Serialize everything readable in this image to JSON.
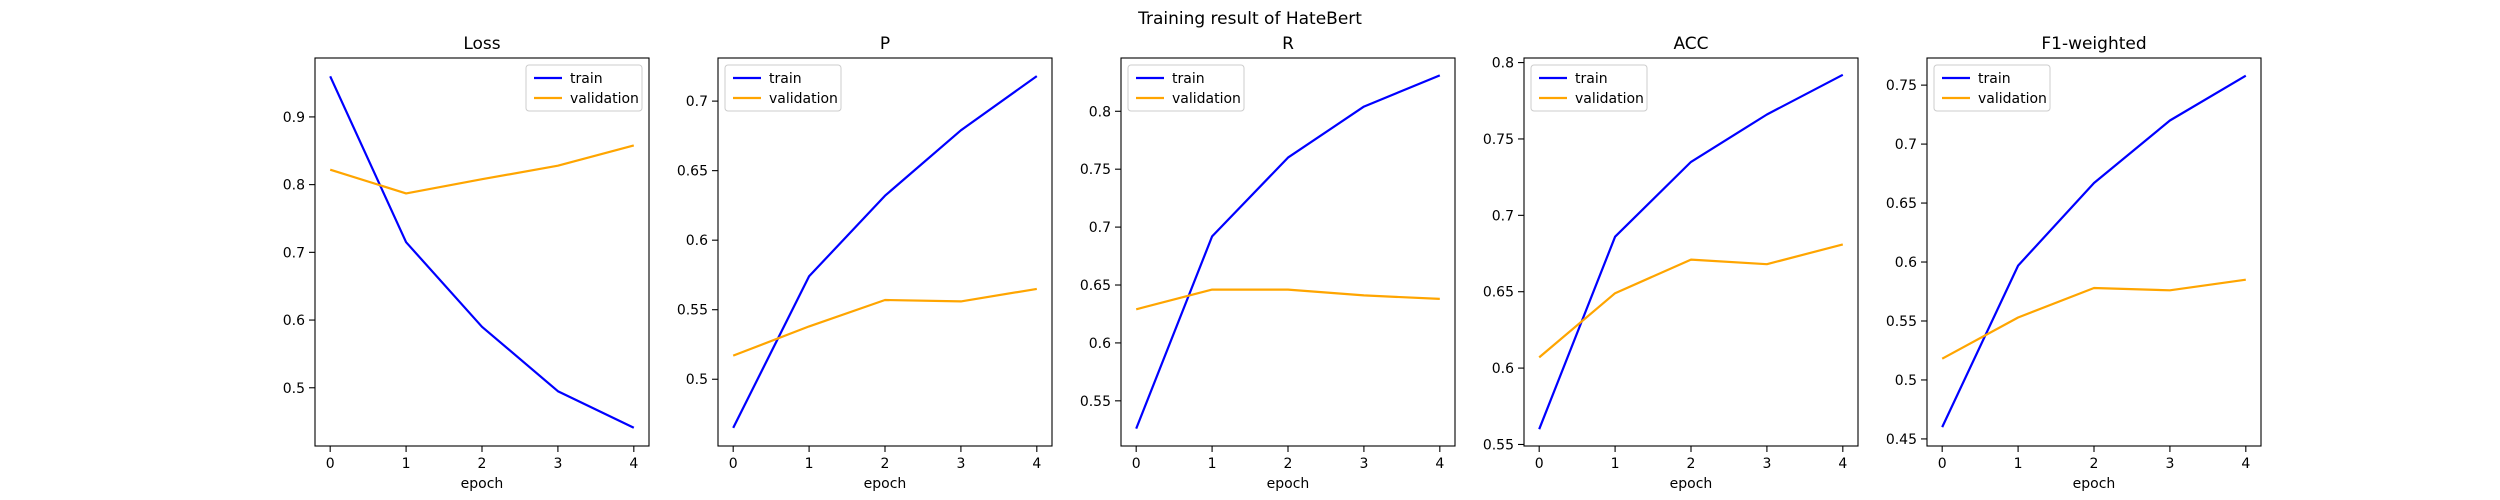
{
  "figure": {
    "suptitle": "Training result of HateBert"
  },
  "colors": {
    "train": "#0000ff",
    "validation": "#ffa500",
    "axes": "#000000",
    "background": "#ffffff"
  },
  "chart_data": [
    {
      "type": "line",
      "title": "Loss",
      "xlabel": "epoch",
      "ylabel": "",
      "x": [
        0,
        1,
        2,
        3,
        4
      ],
      "xlim": [
        -0.2,
        4.2
      ],
      "ylim": [
        0.414,
        0.987
      ],
      "xticks": [
        0,
        1,
        2,
        3,
        4
      ],
      "yticks": [
        0.5,
        0.6,
        0.7,
        0.8,
        0.9
      ],
      "legend": "upper right",
      "grid": false,
      "series": [
        {
          "name": "train",
          "color": "#0000ff",
          "values": [
            0.96,
            0.715,
            0.59,
            0.495,
            0.441
          ]
        },
        {
          "name": "validation",
          "color": "#ffa500",
          "values": [
            0.822,
            0.787,
            0.808,
            0.828,
            0.858
          ]
        }
      ]
    },
    {
      "type": "line",
      "title": "P",
      "xlabel": "epoch",
      "ylabel": "",
      "x": [
        0,
        1,
        2,
        3,
        4
      ],
      "xlim": [
        -0.2,
        4.2
      ],
      "ylim": [
        0.452,
        0.731
      ],
      "xticks": [
        0,
        1,
        2,
        3,
        4
      ],
      "yticks": [
        0.5,
        0.55,
        0.6,
        0.65,
        0.7
      ],
      "legend": "upper left",
      "grid": false,
      "series": [
        {
          "name": "train",
          "color": "#0000ff",
          "values": [
            0.465,
            0.574,
            0.632,
            0.679,
            0.718
          ]
        },
        {
          "name": "validation",
          "color": "#ffa500",
          "values": [
            0.517,
            0.538,
            0.557,
            0.556,
            0.565
          ]
        }
      ]
    },
    {
      "type": "line",
      "title": "R",
      "xlabel": "epoch",
      "ylabel": "",
      "x": [
        0,
        1,
        2,
        3,
        4
      ],
      "xlim": [
        -0.2,
        4.2
      ],
      "ylim": [
        0.511,
        0.846
      ],
      "xticks": [
        0,
        1,
        2,
        3,
        4
      ],
      "yticks": [
        0.55,
        0.6,
        0.65,
        0.7,
        0.75,
        0.8
      ],
      "legend": "upper left",
      "grid": false,
      "series": [
        {
          "name": "train",
          "color": "#0000ff",
          "values": [
            0.526,
            0.692,
            0.76,
            0.804,
            0.831
          ]
        },
        {
          "name": "validation",
          "color": "#ffa500",
          "values": [
            0.629,
            0.646,
            0.646,
            0.641,
            0.638
          ]
        }
      ]
    },
    {
      "type": "line",
      "title": "ACC",
      "xlabel": "epoch",
      "ylabel": "",
      "x": [
        0,
        1,
        2,
        3,
        4
      ],
      "xlim": [
        -0.2,
        4.2
      ],
      "ylim": [
        0.549,
        0.803
      ],
      "xticks": [
        0,
        1,
        2,
        3,
        4
      ],
      "yticks": [
        0.55,
        0.6,
        0.65,
        0.7,
        0.75,
        0.8
      ],
      "legend": "upper left",
      "grid": false,
      "series": [
        {
          "name": "train",
          "color": "#0000ff",
          "values": [
            0.56,
            0.686,
            0.735,
            0.766,
            0.792
          ]
        },
        {
          "name": "validation",
          "color": "#ffa500",
          "values": [
            0.607,
            0.649,
            0.671,
            0.668,
            0.681
          ]
        }
      ]
    },
    {
      "type": "line",
      "title": "F1-weighted",
      "xlabel": "epoch",
      "ylabel": "",
      "x": [
        0,
        1,
        2,
        3,
        4
      ],
      "xlim": [
        -0.2,
        4.2
      ],
      "ylim": [
        0.444,
        0.773
      ],
      "xticks": [
        0,
        1,
        2,
        3,
        4
      ],
      "yticks": [
        0.45,
        0.5,
        0.55,
        0.6,
        0.65,
        0.7,
        0.75
      ],
      "legend": "upper left",
      "grid": false,
      "series": [
        {
          "name": "train",
          "color": "#0000ff",
          "values": [
            0.46,
            0.597,
            0.667,
            0.72,
            0.758
          ]
        },
        {
          "name": "validation",
          "color": "#ffa500",
          "values": [
            0.518,
            0.553,
            0.578,
            0.576,
            0.585
          ]
        }
      ]
    }
  ]
}
